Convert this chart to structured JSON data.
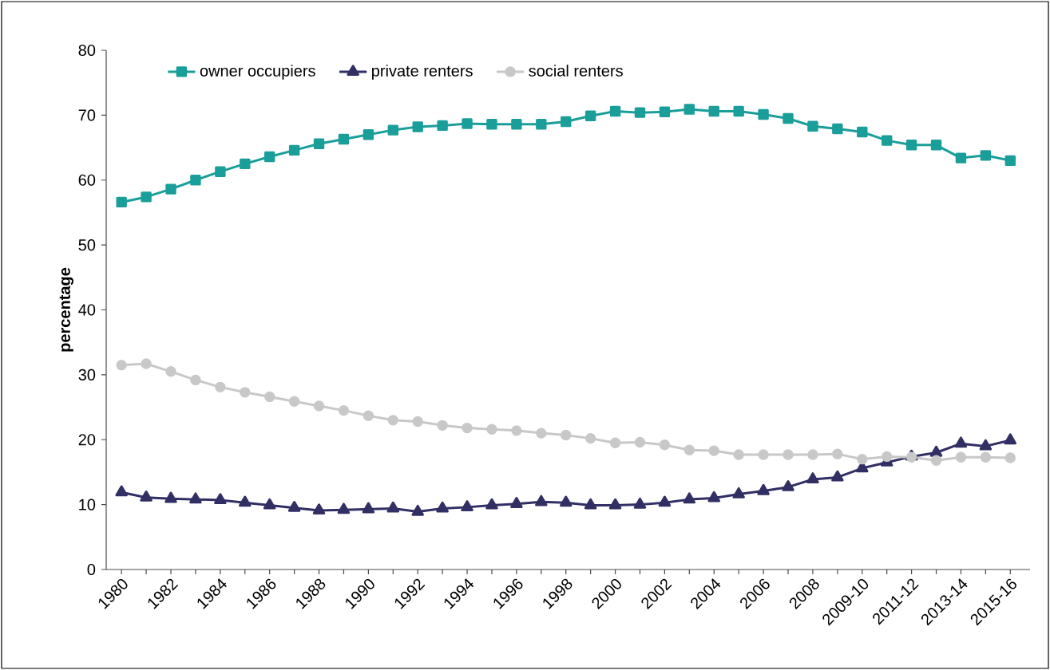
{
  "chart_data": {
    "type": "line",
    "ylabel": "percentage",
    "categories": [
      "1980",
      null,
      "1982",
      null,
      "1984",
      null,
      "1986",
      null,
      "1988",
      null,
      "1990",
      null,
      "1992",
      null,
      "1994",
      null,
      "1996",
      null,
      "1998",
      null,
      "2000",
      null,
      "2002",
      null,
      "2004",
      null,
      "2006",
      null,
      "2008",
      null,
      "2009-10",
      null,
      "2011-12",
      null,
      "2013-14",
      null,
      "2015-16"
    ],
    "ylim": [
      0,
      80
    ],
    "yticks": [
      0,
      10,
      20,
      30,
      40,
      50,
      60,
      70,
      80
    ],
    "legend": "top left",
    "grid": false,
    "line_style": "solid",
    "series": [
      {
        "name": "owner occupiers",
        "color": "#1a9e9a",
        "marker": "square",
        "values": [
          56.6,
          57.4,
          58.6,
          60.0,
          61.3,
          62.5,
          63.6,
          64.6,
          65.6,
          66.3,
          67.0,
          67.7,
          68.2,
          68.4,
          68.7,
          68.6,
          68.6,
          68.6,
          69.0,
          69.9,
          70.6,
          70.4,
          70.5,
          70.9,
          70.6,
          70.6,
          70.1,
          69.5,
          68.3,
          67.9,
          67.4,
          66.1,
          65.4,
          65.4,
          63.4,
          63.8,
          63.0
        ]
      },
      {
        "name": "private renters",
        "color": "#312f63",
        "marker": "triangle",
        "values": [
          11.9,
          11.1,
          10.9,
          10.8,
          10.7,
          10.3,
          9.9,
          9.5,
          9.1,
          9.2,
          9.3,
          9.4,
          8.9,
          9.4,
          9.6,
          9.9,
          10.1,
          10.4,
          10.3,
          9.9,
          9.9,
          10.0,
          10.3,
          10.8,
          11.0,
          11.6,
          12.1,
          12.7,
          13.9,
          14.2,
          15.6,
          16.5,
          17.4,
          18.0,
          19.4,
          19.0,
          19.9
        ]
      },
      {
        "name": "social renters",
        "color": "#c8c8c8",
        "marker": "circle",
        "values": [
          31.5,
          31.7,
          30.5,
          29.2,
          28.1,
          27.3,
          26.6,
          25.9,
          25.2,
          24.5,
          23.7,
          23.0,
          22.8,
          22.2,
          21.8,
          21.6,
          21.4,
          21.0,
          20.7,
          20.2,
          19.5,
          19.6,
          19.2,
          18.4,
          18.3,
          17.7,
          17.7,
          17.7,
          17.7,
          17.8,
          17.0,
          17.4,
          17.3,
          16.8,
          17.3,
          17.3,
          17.2
        ]
      }
    ]
  }
}
